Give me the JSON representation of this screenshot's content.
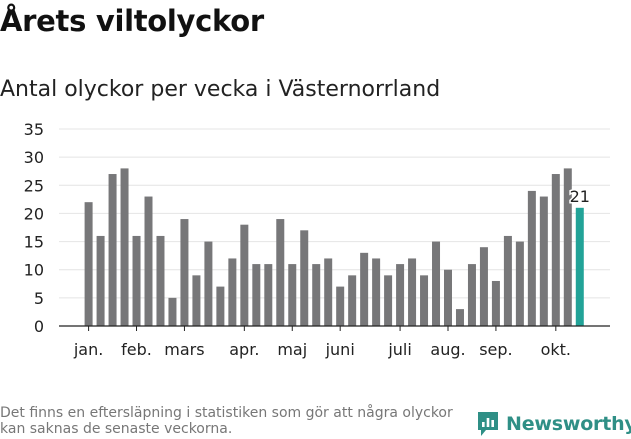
{
  "header": {
    "title": "Årets viltolyckor",
    "subtitle": "Antal olyckor per vecka i Västernorrland"
  },
  "footer": {
    "note": "Det finns en eftersläpning i statistiken som gör att några olyckor kan saknas de senaste veckorna.",
    "brand": "Newsworthy"
  },
  "colors": {
    "bar": "#777779",
    "highlight": "#22a398",
    "axis": "#222222",
    "grid": "#e4e4e4",
    "brand": "#2f8f86"
  },
  "chart_data": {
    "type": "bar",
    "title": "Antal olyckor per vecka i Västernorrland",
    "xlabel": "",
    "ylabel": "",
    "ylim": [
      0,
      35
    ],
    "yticks": [
      0,
      5,
      10,
      15,
      20,
      25,
      30,
      35
    ],
    "grid": true,
    "values": [
      22,
      16,
      27,
      28,
      16,
      23,
      16,
      5,
      19,
      9,
      15,
      7,
      12,
      18,
      11,
      11,
      19,
      11,
      17,
      11,
      12,
      7,
      9,
      13,
      12,
      9,
      11,
      12,
      9,
      15,
      10,
      3,
      11,
      14,
      8,
      16,
      15,
      24,
      23,
      27,
      28,
      21
    ],
    "highlight_index": 41,
    "highlight_label": "21",
    "month_labels": [
      {
        "label": "jan.",
        "position": 0
      },
      {
        "label": "feb.",
        "position": 4
      },
      {
        "label": "mars",
        "position": 8
      },
      {
        "label": "apr.",
        "position": 13
      },
      {
        "label": "maj",
        "position": 17
      },
      {
        "label": "juni",
        "position": 21
      },
      {
        "label": "juli",
        "position": 26
      },
      {
        "label": "aug.",
        "position": 30
      },
      {
        "label": "sep.",
        "position": 34
      },
      {
        "label": "okt.",
        "position": 39
      }
    ]
  }
}
